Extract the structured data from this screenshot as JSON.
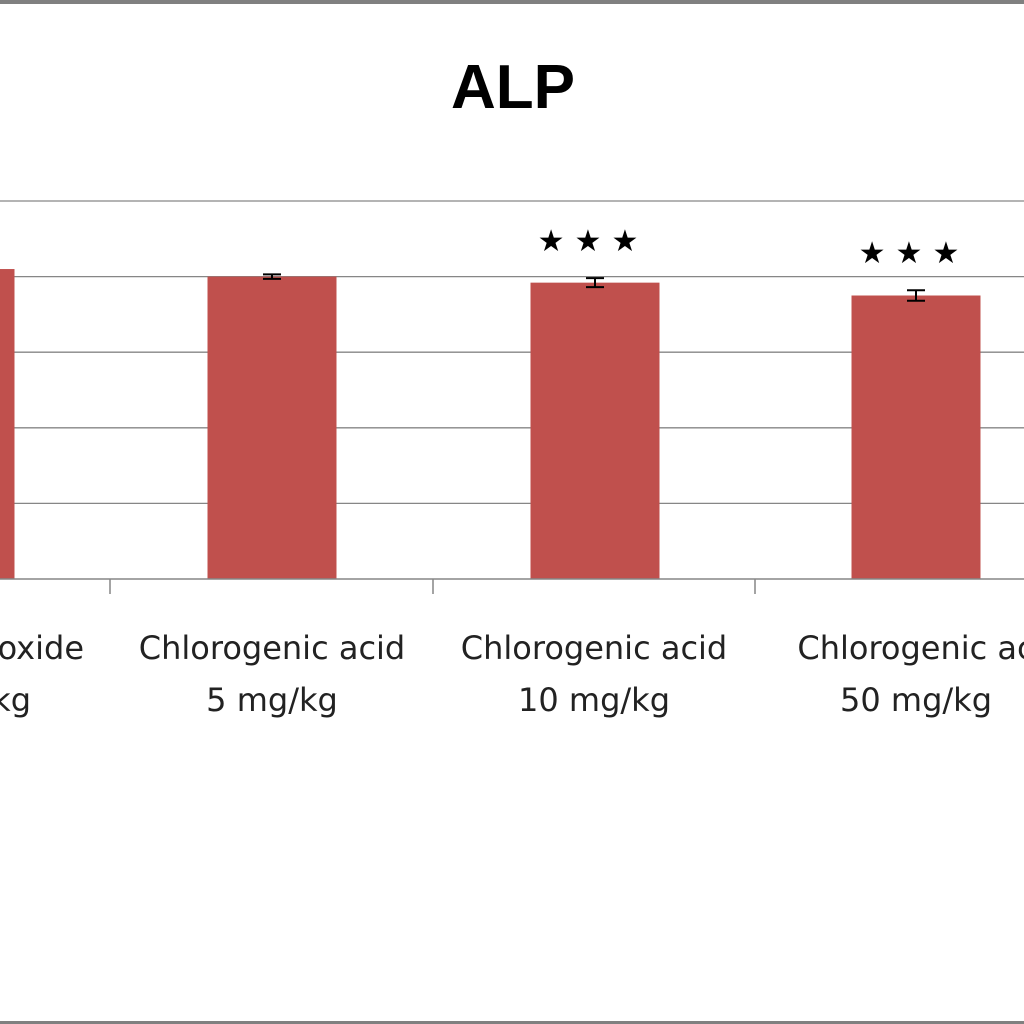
{
  "chart_data": {
    "type": "bar",
    "title": "ALP",
    "xlabel": "",
    "ylabel": "",
    "categories": [
      [
        "oxide",
        "kg"
      ],
      [
        "Chlorogenic acid",
        "5 mg/kg"
      ],
      [
        "Chlorogenic acid",
        "10 mg/kg"
      ],
      [
        "Chlorogenic ac",
        "50 mg/kg"
      ]
    ],
    "values": [
      4.1,
      4.0,
      3.92,
      3.75
    ],
    "errors": [
      0.0,
      0.03,
      0.06,
      0.07
    ],
    "significance": [
      "",
      "",
      "★★★",
      "★★★"
    ],
    "ylim": [
      0,
      5
    ],
    "grid": true,
    "bar_color": "#C0504D",
    "grid_color": "#868686"
  }
}
